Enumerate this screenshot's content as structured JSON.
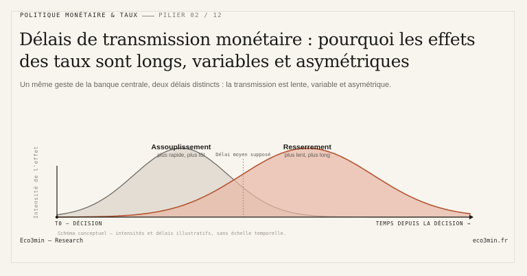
{
  "header": {
    "kicker": "POLITIQUE MONÉTAIRE & TAUX",
    "pillar": "PILIER 02 / 12",
    "title": "Délais de transmission monétaire : pourquoi les effets des taux sont longs, variables et asymétriques",
    "subtitle": "Un même geste de la banque centrale, deux délais distincts : la transmission est lente, variable et asymétrique."
  },
  "footer": {
    "brand": "Eco3min — Research",
    "site": "eco3min.fr"
  },
  "chart_data": {
    "type": "area",
    "ylabel": "Intensité de l'effet",
    "x_start_label": "T0 — DÉCISION",
    "x_end_label": "TEMPS DEPUIS LA DÉCISION →",
    "marker_label": "Délai moyen supposé",
    "note": "Schéma conceptuel — intensités et délais illustratifs, sans échelle temporelle.",
    "xlim": [
      0,
      100
    ],
    "ylim": [
      0,
      1
    ],
    "marker_x": 45,
    "series": [
      {
        "name": "Assouplissement",
        "caption": "plus rapide, plus tôt",
        "peak_x": 30,
        "peak_y": 0.86,
        "width": 11.5,
        "fill": "#e3ddd4",
        "stroke": "#6f6b66"
      },
      {
        "name": "Resserrement",
        "caption": "plus lent, plus long",
        "peak_x": 60.5,
        "peak_y": 0.86,
        "width": 16,
        "fill": "#e8b9a6",
        "stroke": "#b4532f"
      }
    ],
    "colors": {
      "axis": "#1f1d1a",
      "marker": "#8a857d"
    }
  }
}
